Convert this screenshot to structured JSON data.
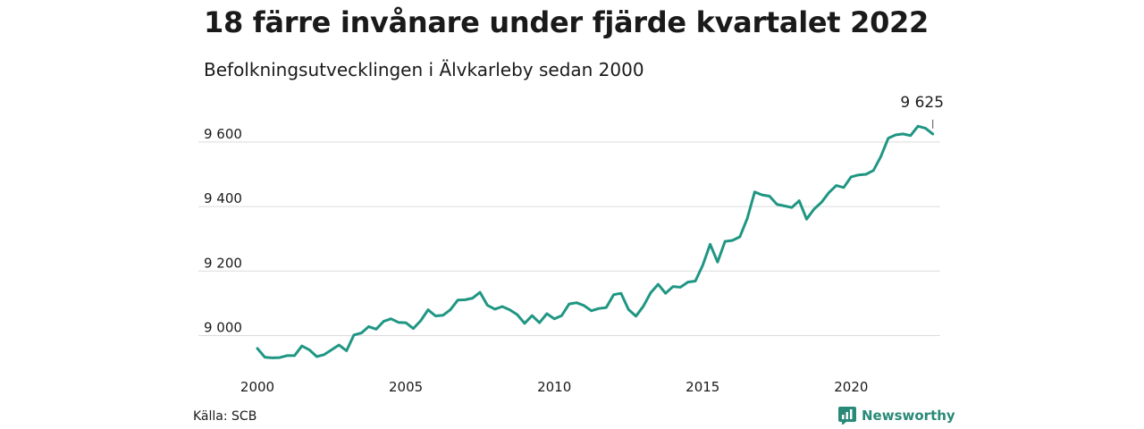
{
  "title": "18 färre invånare under fjärde kvartalet 2022",
  "subtitle": "Befolkningsutvecklingen i Älvkarleby sedan 2000",
  "source": "Källa: SCB",
  "brand": {
    "name": "Newsworthy",
    "color": "#2a8a78",
    "icon": "newsworthy-logo-icon"
  },
  "chart_data": {
    "type": "line",
    "line_color": "#1f9683",
    "grid": true,
    "xlim": [
      2000,
      2023
    ],
    "ylim": [
      8910,
      9680
    ],
    "x_ticks": [
      2000,
      2005,
      2010,
      2015,
      2020
    ],
    "x_tick_labels": [
      "2000",
      "2005",
      "2010",
      "2015",
      "2020"
    ],
    "y_ticks": [
      9000,
      9200,
      9400,
      9600
    ],
    "y_tick_labels": [
      "9 000",
      "9 200",
      "9 400",
      "9 600"
    ],
    "annotation": {
      "text": "9 625",
      "x": 2022.75,
      "y": 9625
    },
    "series": [
      {
        "x": [
          2000.0,
          2000.25,
          2000.5,
          2000.75,
          2001.0,
          2001.25,
          2001.5,
          2001.75,
          2002.0,
          2002.25,
          2002.5,
          2002.75,
          2003.0,
          2003.25,
          2003.5,
          2003.75,
          2004.0,
          2004.25,
          2004.5,
          2004.75,
          2005.0,
          2005.25,
          2005.5,
          2005.75,
          2006.0,
          2006.25,
          2006.5,
          2006.75,
          2007.0,
          2007.25,
          2007.5,
          2007.75,
          2008.0,
          2008.25,
          2008.5,
          2008.75,
          2009.0,
          2009.25,
          2009.5,
          2009.75,
          2010.0,
          2010.25,
          2010.5,
          2010.75,
          2011.0,
          2011.25,
          2011.5,
          2011.75,
          2012.0,
          2012.25,
          2012.5,
          2012.75,
          2013.0,
          2013.25,
          2013.5,
          2013.75,
          2014.0,
          2014.25,
          2014.5,
          2014.75,
          2015.0,
          2015.25,
          2015.5,
          2015.75,
          2016.0,
          2016.25,
          2016.5,
          2016.75,
          2017.0,
          2017.25,
          2017.5,
          2017.75,
          2018.0,
          2018.25,
          2018.5,
          2018.75,
          2019.0,
          2019.25,
          2019.5,
          2019.75,
          2020.0,
          2020.25,
          2020.5,
          2020.75,
          2021.0,
          2021.25,
          2021.5,
          2021.75,
          2022.0,
          2022.25,
          2022.5,
          2022.75
        ],
        "values": [
          8960,
          8933,
          8931,
          8932,
          8938,
          8938,
          8968,
          8956,
          8935,
          8941,
          8956,
          8971,
          8953,
          9002,
          9008,
          9028,
          9020,
          9044,
          9052,
          9041,
          9040,
          9022,
          9046,
          9080,
          9061,
          9063,
          9080,
          9110,
          9111,
          9116,
          9134,
          9094,
          9082,
          9090,
          9080,
          9065,
          9038,
          9062,
          9040,
          9068,
          9052,
          9062,
          9098,
          9102,
          9093,
          9077,
          9084,
          9087,
          9127,
          9131,
          9081,
          9060,
          9091,
          9133,
          9159,
          9131,
          9152,
          9150,
          9166,
          9169,
          9218,
          9283,
          9228,
          9292,
          9295,
          9306,
          9363,
          9445,
          9436,
          9432,
          9407,
          9402,
          9397,
          9418,
          9361,
          9392,
          9413,
          9443,
          9465,
          9459,
          9492,
          9498,
          9500,
          9512,
          9555,
          9612,
          9622,
          9625,
          9620,
          9649,
          9643,
          9625
        ]
      }
    ]
  }
}
